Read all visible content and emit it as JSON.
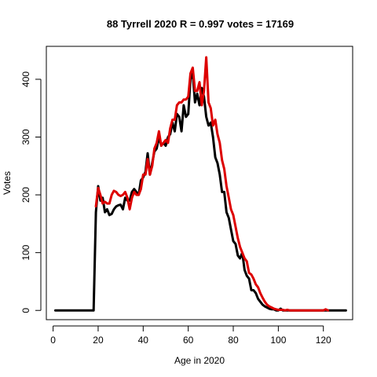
{
  "chart_data": {
    "type": "line",
    "title": "88 Tyrrell 2020 R = 0.997 votes = 17169",
    "xlabel": "Age in 2020",
    "ylabel": "Votes",
    "xlim": [
      -3,
      133
    ],
    "ylim": [
      -16,
      457
    ],
    "xticks": [
      0,
      20,
      40,
      60,
      80,
      100,
      120
    ],
    "yticks": [
      0,
      100,
      200,
      300,
      400
    ],
    "grid": false,
    "legend": "none",
    "series": [
      {
        "color": "#000000",
        "line_width": 3,
        "x": [
          1,
          2,
          3,
          4,
          5,
          6,
          7,
          8,
          9,
          10,
          11,
          12,
          13,
          14,
          15,
          16,
          17,
          18,
          19,
          20,
          21,
          22,
          23,
          24,
          25,
          26,
          27,
          28,
          29,
          30,
          31,
          32,
          33,
          34,
          35,
          36,
          37,
          38,
          39,
          40,
          41,
          42,
          43,
          44,
          45,
          46,
          47,
          48,
          49,
          50,
          51,
          52,
          53,
          54,
          55,
          56,
          57,
          58,
          59,
          60,
          61,
          62,
          63,
          64,
          65,
          66,
          67,
          68,
          69,
          70,
          71,
          72,
          73,
          74,
          75,
          76,
          77,
          78,
          79,
          80,
          81,
          82,
          83,
          84,
          85,
          86,
          87,
          88,
          89,
          90,
          91,
          92,
          93,
          94,
          95,
          96,
          97,
          98,
          99,
          100,
          101,
          102,
          103,
          104,
          105,
          106,
          107,
          108,
          109,
          110,
          111,
          112,
          113,
          114,
          115,
          116,
          117,
          118,
          119,
          120,
          121,
          122,
          123,
          124,
          125,
          126,
          127,
          128,
          129,
          130
        ],
        "values": [
          0,
          0,
          0,
          0,
          0,
          0,
          0,
          0,
          0,
          0,
          0,
          0,
          0,
          0,
          0,
          0,
          0,
          0,
          170,
          215,
          190,
          195,
          170,
          175,
          165,
          167,
          175,
          180,
          182,
          183,
          175,
          195,
          190,
          190,
          205,
          210,
          205,
          200,
          225,
          230,
          240,
          272,
          235,
          255,
          275,
          280,
          300,
          285,
          290,
          285,
          300,
          305,
          325,
          310,
          340,
          335,
          310,
          355,
          335,
          340,
          400,
          410,
          360,
          375,
          355,
          385,
          370,
          335,
          320,
          325,
          300,
          265,
          255,
          235,
          205,
          205,
          170,
          160,
          140,
          120,
          115,
          95,
          90,
          100,
          70,
          60,
          55,
          35,
          35,
          30,
          20,
          15,
          10,
          7,
          5,
          3,
          2,
          2,
          0,
          0,
          3,
          0,
          0,
          0,
          0,
          0,
          0,
          0,
          0,
          0,
          0,
          0,
          0,
          0,
          0,
          0,
          0,
          0,
          0,
          0,
          0,
          0,
          0,
          0,
          0,
          0,
          0,
          0,
          0,
          0
        ]
      },
      {
        "color": "#dd0000",
        "line_width": 3,
        "x": [
          19,
          20,
          21,
          22,
          23,
          24,
          25,
          26,
          27,
          28,
          29,
          30,
          31,
          32,
          33,
          34,
          35,
          36,
          37,
          38,
          39,
          40,
          41,
          42,
          43,
          44,
          45,
          46,
          47,
          48,
          49,
          50,
          51,
          52,
          53,
          54,
          55,
          56,
          57,
          58,
          59,
          60,
          61,
          62,
          63,
          64,
          65,
          66,
          67,
          68,
          69,
          70,
          71,
          72,
          73,
          74,
          75,
          76,
          77,
          78,
          79,
          80,
          81,
          82,
          83,
          84,
          85,
          86,
          87,
          88,
          89,
          90,
          91,
          92,
          93,
          94,
          95,
          96,
          97,
          98,
          99,
          100,
          101,
          102,
          103,
          104,
          105,
          106,
          107,
          108,
          109,
          110,
          111,
          112,
          113,
          114,
          115,
          116,
          117,
          118,
          119,
          120,
          121,
          122
        ],
        "values": [
          180,
          212,
          200,
          185,
          188,
          185,
          185,
          200,
          207,
          205,
          200,
          198,
          200,
          205,
          195,
          175,
          195,
          205,
          200,
          200,
          210,
          235,
          235,
          262,
          235,
          250,
          280,
          290,
          310,
          285,
          290,
          295,
          290,
          315,
          330,
          330,
          355,
          360,
          360,
          365,
          365,
          370,
          410,
          420,
          380,
          380,
          395,
          355,
          380,
          438,
          360,
          350,
          320,
          330,
          305,
          290,
          260,
          245,
          215,
          195,
          175,
          165,
          145,
          125,
          110,
          100,
          90,
          85,
          65,
          62,
          55,
          45,
          40,
          30,
          22,
          15,
          10,
          7,
          5,
          3,
          2,
          1,
          1,
          1,
          0,
          1,
          0,
          0,
          0,
          0,
          0,
          0,
          0,
          0,
          0,
          0,
          0,
          0,
          0,
          0,
          0,
          0,
          2,
          0
        ]
      }
    ]
  }
}
